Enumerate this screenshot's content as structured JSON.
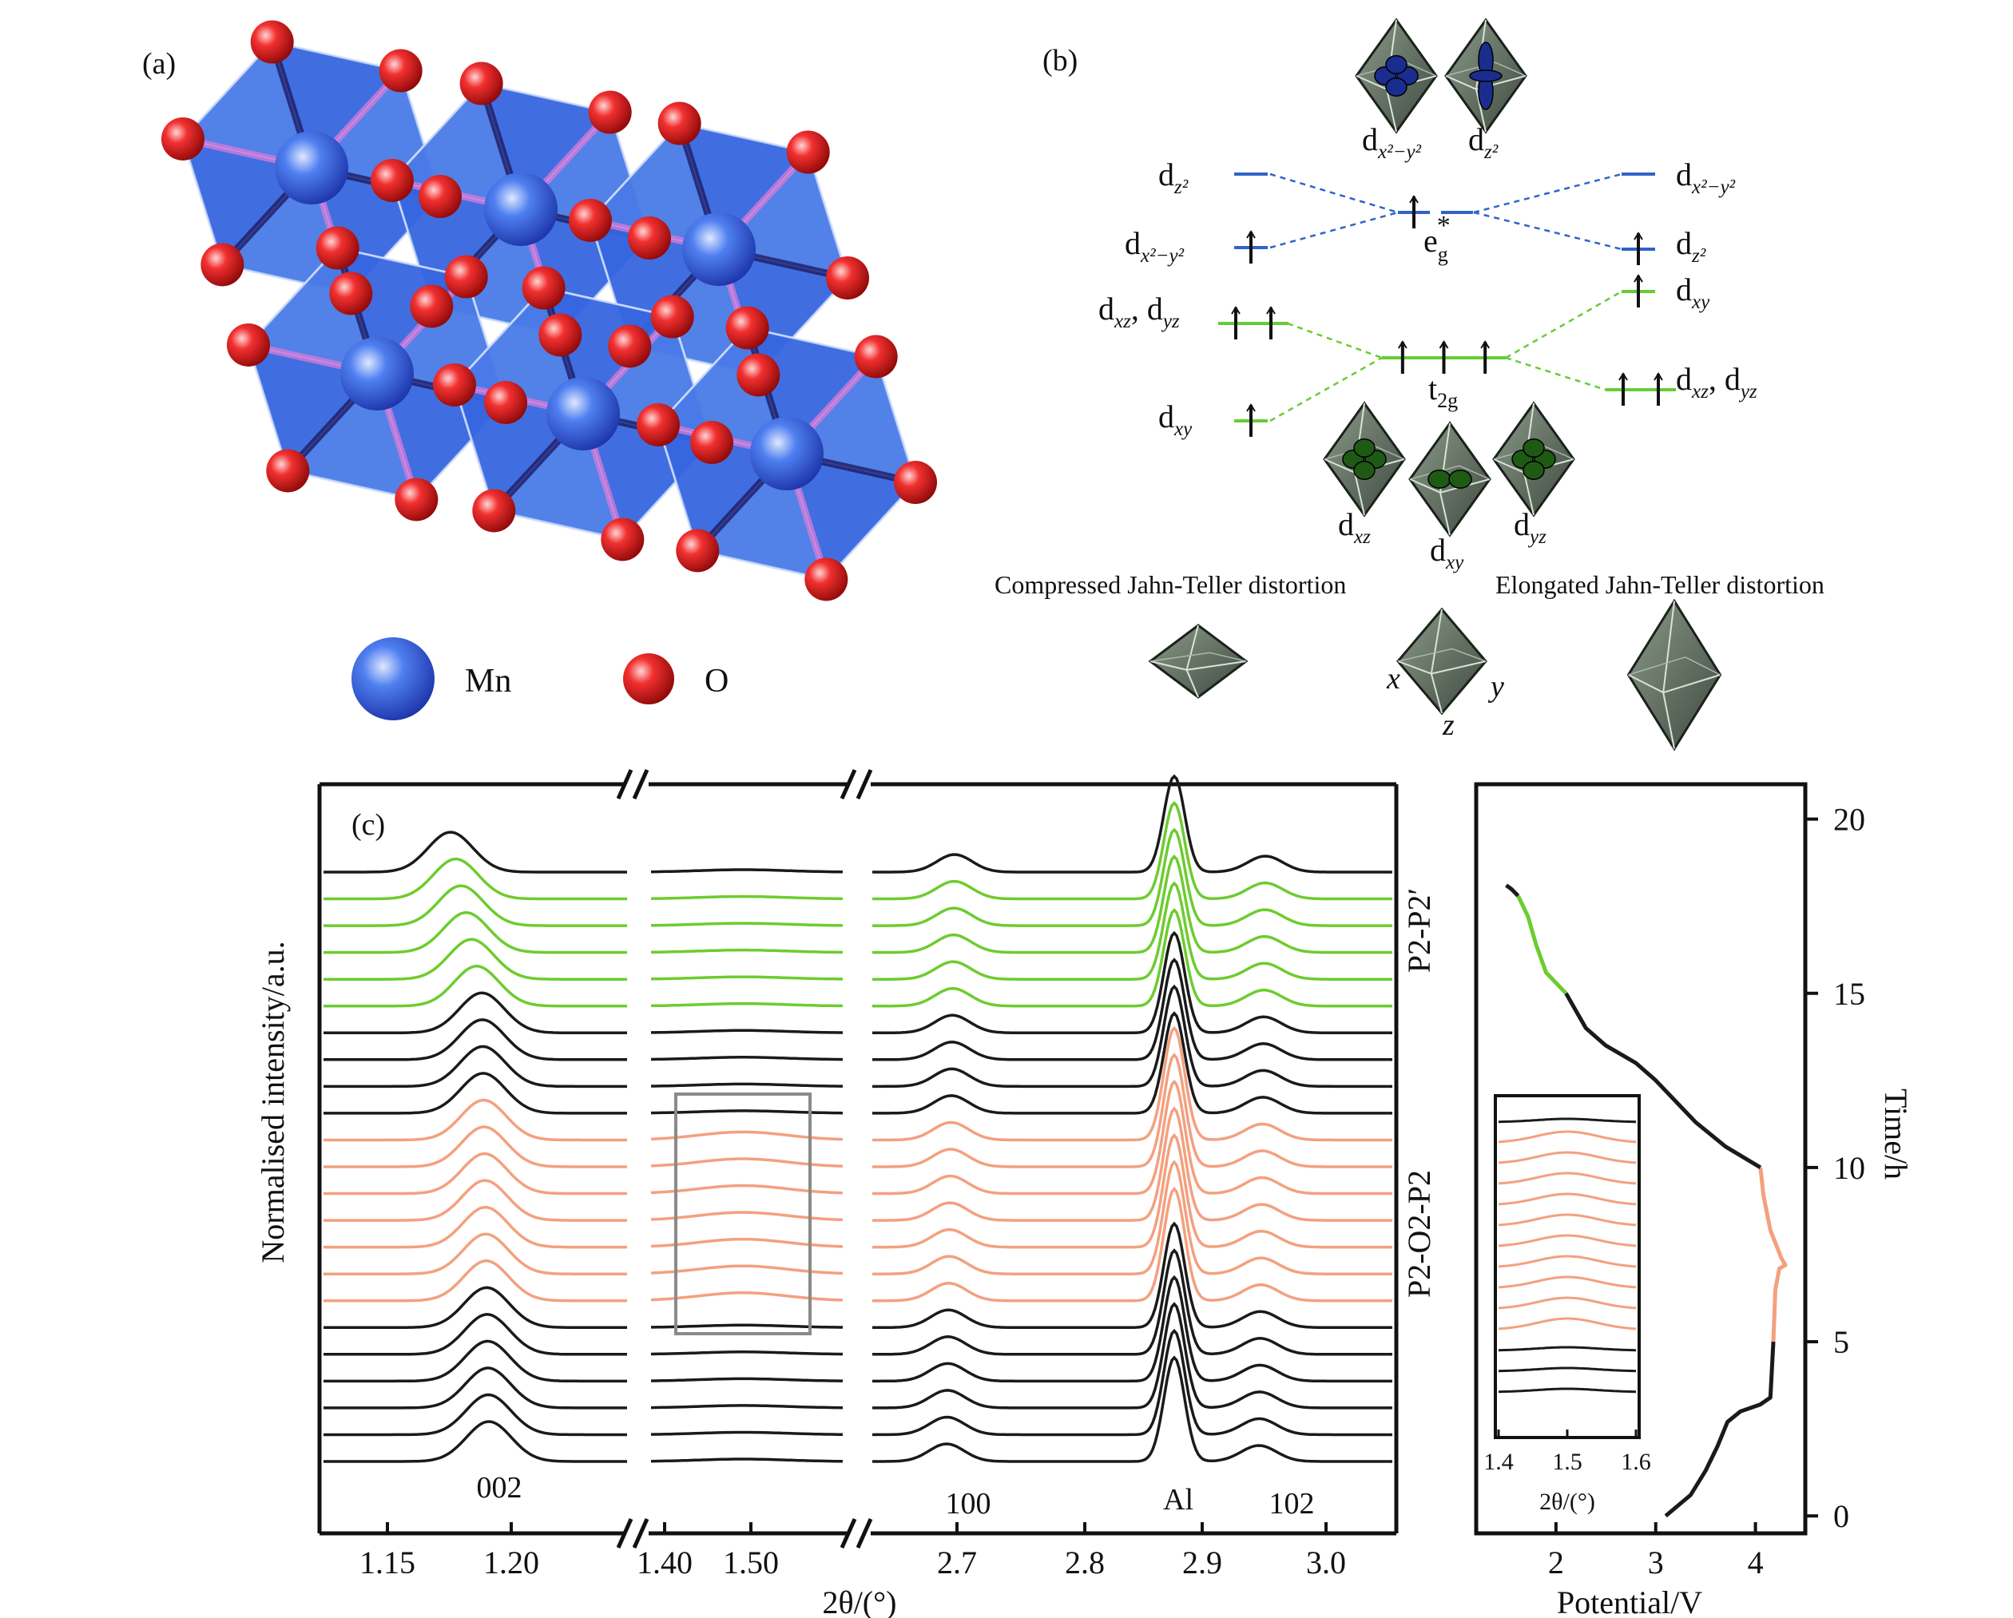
{
  "panel_a": {
    "label": "(a)",
    "legend": [
      {
        "name": "Mn",
        "color": "#2f55e0"
      },
      {
        "name": "O",
        "color": "#e01818"
      }
    ]
  },
  "panel_b": {
    "label": "(b)",
    "compressed_title": "Compressed Jahn-Teller distortion",
    "elongated_title": "Elongated Jahn-Teller distortion",
    "top_orbitals": [
      {
        "base": "d",
        "sub": "x²−y²"
      },
      {
        "base": "d",
        "sub": "z²"
      }
    ],
    "bottom_orbitals": [
      {
        "base": "d",
        "sub": "xz"
      },
      {
        "base": "d",
        "sub": "xy"
      },
      {
        "base": "d",
        "sub": "yz"
      }
    ],
    "left_levels": [
      {
        "base": "d",
        "sub": "z²",
        "electrons": 0,
        "group": "eg"
      },
      {
        "base": "d",
        "sub": "x²−y²",
        "electrons": 1,
        "group": "eg"
      },
      {
        "base": "d",
        "sub": "xz",
        "base2": "d",
        "sub2": "yz",
        "electrons": 2,
        "group": "t2g"
      },
      {
        "base": "d",
        "sub": "xy",
        "electrons": 1,
        "group": "t2g"
      }
    ],
    "center_levels": [
      {
        "base": "e",
        "sub": "g",
        "sup": "*",
        "electrons": 1,
        "group": "eg"
      },
      {
        "base": "t",
        "sub": "2g",
        "electrons": 3,
        "group": "t2g"
      }
    ],
    "right_levels": [
      {
        "base": "d",
        "sub": "x²−y²",
        "electrons": 0,
        "group": "eg"
      },
      {
        "base": "d",
        "sub": "z²",
        "electrons": 1,
        "group": "eg"
      },
      {
        "base": "d",
        "sub": "xy",
        "electrons": 1,
        "group": "t2g"
      },
      {
        "base": "d",
        "sub": "xz",
        "base2": "d",
        "sub2": "yz",
        "electrons": 2,
        "group": "t2g"
      }
    ],
    "axes": [
      "x",
      "y",
      "z"
    ],
    "colors": {
      "eg": "#2f63c8",
      "t2g": "#66cc33"
    }
  },
  "panel_c": {
    "label": "(c)",
    "ylabel": "Normalised intensity/a.u.",
    "xlabel": "2θ/(°)",
    "segment_ticks": [
      [
        "1.15",
        "1.20"
      ],
      [
        "1.40",
        "1.50"
      ],
      [
        "2.7",
        "2.8",
        "2.9",
        "3.0"
      ]
    ],
    "peak_labels": [
      "002",
      "100",
      "Al",
      "102"
    ],
    "phase_labels": [
      {
        "text": "P2-P2′",
        "color": "#6dcc2f"
      },
      {
        "text": "P2-O2-P2",
        "color": "#f4a07f"
      }
    ],
    "colors": {
      "black": "#1a1a1a",
      "green": "#6dcc2f",
      "orange": "#f4a07f"
    }
  },
  "echem": {
    "xlabel": "Potential/V",
    "ylabel": "Time/h",
    "x_ticks": [
      "2",
      "3",
      "4"
    ],
    "y_ticks": [
      "0",
      "5",
      "10",
      "15",
      "20"
    ],
    "inset_ticks": [
      "1.4",
      "1.5",
      "1.6"
    ],
    "inset_xlabel": "2θ/(°)"
  },
  "chart_data": {
    "type": "line",
    "title": "",
    "xlabel": "Potential/V",
    "ylabel": "Time/h",
    "xlim": [
      1.2,
      4.5
    ],
    "ylim": [
      -0.5,
      21
    ],
    "series": [
      {
        "color": "#1a1a1a",
        "x": [
          3.1,
          3.35,
          3.5,
          3.62,
          3.72,
          3.85,
          4.05,
          4.15,
          4.18
        ],
        "y": [
          0.0,
          0.6,
          1.3,
          2.0,
          2.7,
          3.0,
          3.2,
          3.4,
          5.0
        ]
      },
      {
        "color": "#f4a07f",
        "x": [
          4.18,
          4.2,
          4.24,
          4.3,
          4.26,
          4.15,
          4.08,
          4.05
        ],
        "y": [
          5.0,
          6.5,
          7.1,
          7.2,
          7.4,
          8.2,
          9.2,
          10.0
        ]
      },
      {
        "color": "#1a1a1a",
        "x": [
          4.05,
          3.7,
          3.4,
          3.2,
          3.0,
          2.8,
          2.5,
          2.3,
          2.1
        ],
        "y": [
          10.0,
          10.6,
          11.3,
          11.9,
          12.5,
          13.0,
          13.5,
          14.0,
          15.0
        ]
      },
      {
        "color": "#6dcc2f",
        "x": [
          2.1,
          1.9,
          1.8,
          1.72,
          1.62
        ],
        "y": [
          15.0,
          15.6,
          16.4,
          17.2,
          17.8
        ]
      },
      {
        "color": "#1a1a1a",
        "x": [
          1.62,
          1.55,
          1.5
        ],
        "y": [
          17.8,
          18.0,
          18.1
        ]
      }
    ]
  }
}
